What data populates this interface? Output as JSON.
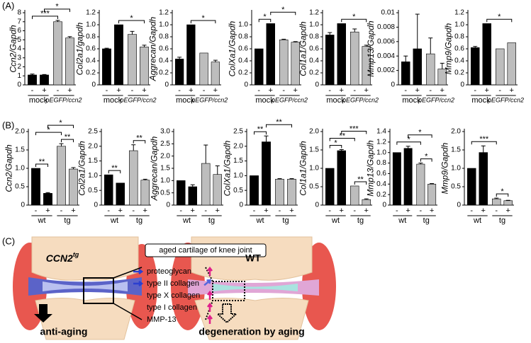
{
  "panel_labels": [
    "(A)",
    "(B)",
    "(C)"
  ],
  "chart_data": [
    {
      "type": "bar",
      "ylabel": "Ccn2/Gapdh",
      "categories": [
        "-",
        "+",
        "-",
        "+"
      ],
      "groups": [
        "mock",
        "pEGFP/ccn2"
      ],
      "colors": [
        "#000000",
        "#000000",
        "#bdbdbd",
        "#bdbdbd"
      ],
      "values": [
        1.1,
        1.1,
        7.0,
        5.2
      ],
      "errors": [
        0.1,
        0.05,
        0.15,
        0.15
      ],
      "ylim": [
        0,
        8
      ],
      "yticks": [
        0,
        1,
        2,
        3,
        4,
        5,
        6,
        7,
        8
      ],
      "brackets": [
        {
          "bars": [
            0,
            2
          ],
          "label": "***"
        },
        {
          "bars": [
            1,
            3
          ],
          "label": "*"
        }
      ]
    },
    {
      "type": "bar",
      "ylabel": "Col2a1/gapdh",
      "categories": [
        "-",
        "+",
        "-",
        "+"
      ],
      "groups": [
        "mock",
        "pEGFP/ccn2"
      ],
      "colors": [
        "#000000",
        "#000000",
        "#bdbdbd",
        "#bdbdbd"
      ],
      "values": [
        0.6,
        1.0,
        0.84,
        0.63
      ],
      "errors": [
        0.01,
        0.0,
        0.05,
        0.03
      ],
      "ylim": [
        0,
        1.2
      ],
      "yticks": [
        0,
        0.2,
        0.4,
        0.6,
        0.8,
        {
          "value": 1,
          "label": "1.0"
        },
        1.2
      ],
      "brackets": [
        {
          "bars": [
            1,
            3
          ],
          "label": "*"
        }
      ]
    },
    {
      "type": "bar",
      "ylabel": "Aggrecan/Gapdh",
      "categories": [
        "-",
        "+",
        "-",
        "+"
      ],
      "groups": [
        "mock",
        "pEGFP/ccn2"
      ],
      "colors": [
        "#000000",
        "#000000",
        "#bdbdbd",
        "#bdbdbd"
      ],
      "values": [
        0.43,
        1.0,
        0.53,
        0.38
      ],
      "errors": [
        0.03,
        0.0,
        0.0,
        0.03
      ],
      "ylim": [
        0,
        1.2
      ],
      "yticks": [
        0,
        0.2,
        0.4,
        0.6,
        0.8,
        {
          "value": 1,
          "label": "1.0"
        },
        1.2
      ],
      "brackets": [
        {
          "bars": [
            1,
            3
          ],
          "label": "*"
        }
      ]
    },
    {
      "type": "bar",
      "ylabel": "ColXa1/Gapdh",
      "categories": [
        "-",
        "+",
        "-",
        "+"
      ],
      "groups": [
        "mock",
        "pEGFP/ccn2"
      ],
      "colors": [
        "#000000",
        "#000000",
        "#bdbdbd",
        "#bdbdbd"
      ],
      "values": [
        0.6,
        1.02,
        0.75,
        0.71
      ],
      "errors": [
        0.0,
        0.0,
        0.01,
        0.01
      ],
      "ylim": [
        0,
        1.2
      ],
      "yticks": [
        0,
        0.2,
        0.4,
        0.6,
        0.8,
        {
          "value": 1,
          "label": "1.0"
        }
      ],
      "brackets": [
        {
          "bars": [
            0,
            1
          ],
          "label": "*"
        },
        {
          "bars": [
            1,
            3
          ],
          "label": "*"
        }
      ]
    },
    {
      "type": "bar",
      "ylabel": "Col1a1/Gapdh",
      "categories": [
        "-",
        "+",
        "-",
        "+"
      ],
      "groups": [
        "mock",
        "pEGFP/ccn2"
      ],
      "colors": [
        "#000000",
        "#000000",
        "#bdbdbd",
        "#bdbdbd"
      ],
      "values": [
        0.83,
        1.02,
        0.88,
        0.64
      ],
      "errors": [
        0.04,
        0.0,
        0.05,
        0.02
      ],
      "ylim": [
        0,
        1.2
      ],
      "yticks": [
        0,
        0.2,
        0.4,
        0.6,
        0.8,
        {
          "value": 1,
          "label": "1.0"
        },
        1.2
      ],
      "brackets": [
        {
          "bars": [
            1,
            3
          ],
          "label": "*"
        }
      ]
    },
    {
      "type": "bar",
      "ylabel": "Mmp13/Gapdh",
      "categories": [
        "-",
        "+",
        "-",
        "+"
      ],
      "groups": [
        "mock",
        "pEGFP/ccn2"
      ],
      "colors": [
        "#000000",
        "#000000",
        "#bdbdbd",
        "#bdbdbd"
      ],
      "values": [
        0.0032,
        0.005,
        0.0043,
        0.0022
      ],
      "errors": [
        0.0008,
        0.0048,
        0.0022,
        0.0008
      ],
      "ylim": [
        0,
        0.01
      ],
      "yticks": [
        0,
        0.002,
        0.004,
        0.006,
        0.008,
        0.01
      ],
      "brackets": []
    },
    {
      "type": "bar",
      "ylabel": "Mmp9/Gapdh",
      "categories": [
        "-",
        "+",
        "-",
        "+"
      ],
      "groups": [
        "mock",
        "pEGFP/ccn2"
      ],
      "colors": [
        "#000000",
        "#000000",
        "#bdbdbd",
        "#bdbdbd"
      ],
      "values": [
        0.62,
        1.02,
        0.6,
        0.7
      ],
      "errors": [
        0.02,
        0.0,
        0.0,
        0.0
      ],
      "ylim": [
        0,
        1.2
      ],
      "yticks": [
        0,
        0.2,
        0.4,
        0.6,
        0.8,
        {
          "value": 1,
          "label": "1.0"
        },
        1.2
      ],
      "brackets": [
        {
          "bars": [
            1,
            3
          ],
          "label": "*"
        }
      ]
    },
    {
      "type": "bar",
      "ylabel": "Ccn2/Gapdh",
      "categories": [
        "-",
        "+",
        "-",
        "+"
      ],
      "groups": [
        "wt",
        "tg"
      ],
      "colors": [
        "#000000",
        "#000000",
        "#bdbdbd",
        "#bdbdbd"
      ],
      "values": [
        1.0,
        0.32,
        1.6,
        0.98
      ],
      "errors": [
        0.0,
        0.02,
        0.07,
        0.04
      ],
      "ylim": [
        0,
        2
      ],
      "yticks": [
        0,
        0.5,
        {
          "value": 1,
          "label": "1.0"
        },
        1.5,
        {
          "value": 2,
          "label": "2.0"
        }
      ],
      "brackets": [
        {
          "bars": [
            0,
            1
          ],
          "label": "**"
        },
        {
          "bars": [
            2,
            3
          ],
          "label": "**"
        },
        {
          "bars": [
            0,
            2
          ],
          "label": "*"
        },
        {
          "bars": [
            1,
            3
          ],
          "label": "*"
        }
      ]
    },
    {
      "type": "bar",
      "ylabel": "Col2a1/Gapdh",
      "categories": [
        "-",
        "+",
        "-",
        "+"
      ],
      "groups": [
        "wt",
        "tg"
      ],
      "colors": [
        "#000000",
        "#000000",
        "#bdbdbd",
        "#bdbdbd"
      ],
      "values": [
        1.03,
        0.75,
        1.85,
        0.85
      ],
      "errors": [
        0.0,
        0.0,
        0.2,
        0.03
      ],
      "ylim": [
        0,
        2.5
      ],
      "yticks": [
        0,
        0.5,
        {
          "value": 1,
          "label": "1.0"
        },
        1.5,
        {
          "value": 2,
          "label": "2.0"
        },
        2.5
      ],
      "brackets": [
        {
          "bars": [
            0,
            1
          ],
          "label": "**"
        },
        {
          "bars": [
            2,
            3
          ],
          "label": "**"
        }
      ]
    },
    {
      "type": "bar",
      "ylabel": "Aggrecan/Gapdh",
      "categories": [
        "-",
        "+",
        "-",
        "+"
      ],
      "groups": [
        "wt",
        "tg"
      ],
      "colors": [
        "#000000",
        "#000000",
        "#bdbdbd",
        "#bdbdbd"
      ],
      "values": [
        1.0,
        0.75,
        1.7,
        1.25
      ],
      "errors": [
        0.0,
        0.08,
        0.75,
        0.35
      ],
      "ylim": [
        0,
        3
      ],
      "yticks": [
        0,
        0.5,
        {
          "value": 1,
          "label": "1.0"
        },
        1.5,
        {
          "value": 2,
          "label": "2.0"
        },
        2.5,
        {
          "value": 3,
          "label": "3.0"
        }
      ],
      "brackets": []
    },
    {
      "type": "bar",
      "ylabel": "ColXa1/Gapdh",
      "categories": [
        "-",
        "+",
        "-",
        "+"
      ],
      "groups": [
        "wt",
        "tg"
      ],
      "colors": [
        "#000000",
        "#000000",
        "#bdbdbd",
        "#bdbdbd"
      ],
      "values": [
        1.0,
        2.15,
        0.88,
        0.88
      ],
      "errors": [
        0.0,
        0.2,
        0.02,
        0.02
      ],
      "ylim": [
        0,
        2.5
      ],
      "yticks": [
        0,
        0.5,
        {
          "value": 1,
          "label": "1.0"
        },
        1.5,
        {
          "value": 2,
          "label": "2.0"
        },
        2.5
      ],
      "brackets": [
        {
          "bars": [
            0,
            1
          ],
          "label": "**"
        },
        {
          "bars": [
            1,
            3
          ],
          "label": "**"
        }
      ]
    },
    {
      "type": "bar",
      "ylabel": "Col1a1/Gapdh",
      "categories": [
        "-",
        "+",
        "-",
        "+"
      ],
      "groups": [
        "wt",
        "tg"
      ],
      "colors": [
        "#000000",
        "#000000",
        "#bdbdbd",
        "#bdbdbd"
      ],
      "values": [
        1.0,
        1.48,
        0.52,
        0.15
      ],
      "errors": [
        0.0,
        0.03,
        0.0,
        0.02
      ],
      "ylim": [
        0,
        2
      ],
      "yticks": [
        0,
        0.5,
        {
          "value": 1,
          "label": "1.0"
        },
        1.5,
        {
          "value": 2,
          "label": "2.0"
        }
      ],
      "brackets": [
        {
          "bars": [
            0,
            1
          ],
          "label": "*"
        },
        {
          "bars": [
            2,
            3
          ],
          "label": "**"
        },
        {
          "bars": [
            0,
            2
          ],
          "label": "**"
        },
        {
          "bars": [
            1,
            3
          ],
          "label": "***"
        }
      ]
    },
    {
      "type": "bar",
      "ylabel": "Mmp13/Gapdh",
      "categories": [
        "-",
        "+",
        "-",
        "+"
      ],
      "groups": [
        "wt",
        "tg"
      ],
      "colors": [
        "#000000",
        "#000000",
        "#bdbdbd",
        "#bdbdbd"
      ],
      "values": [
        1.0,
        1.08,
        0.78,
        0.4
      ],
      "errors": [
        0.0,
        0.04,
        0.02,
        0.01
      ],
      "ylim": [
        0,
        1.4
      ],
      "yticks": [
        0,
        0.2,
        0.4,
        0.6,
        0.8,
        {
          "value": 1,
          "label": "1.0"
        },
        1.2,
        1.4
      ],
      "brackets": [
        {
          "bars": [
            2,
            3
          ],
          "label": "*"
        },
        {
          "bars": [
            0,
            2
          ],
          "label": "*"
        },
        {
          "bars": [
            1,
            3
          ],
          "label": "*"
        }
      ]
    },
    {
      "type": "bar",
      "ylabel": "Mmp9/Gapdh",
      "categories": [
        "-",
        "+",
        "-",
        "+"
      ],
      "groups": [
        "wt",
        "tg"
      ],
      "colors": [
        "#000000",
        "#000000",
        "#bdbdbd",
        "#bdbdbd"
      ],
      "values": [
        1.0,
        1.43,
        0.17,
        0.12
      ],
      "errors": [
        0.0,
        0.18,
        0.02,
        0.01
      ],
      "ylim": [
        0,
        2
      ],
      "yticks": [
        0,
        0.5,
        {
          "value": 1,
          "label": "1.0"
        },
        1.5,
        {
          "value": 2,
          "label": "2.0"
        }
      ],
      "brackets": [
        {
          "bars": [
            2,
            3
          ],
          "label": "*"
        },
        {
          "bars": [
            0,
            2
          ],
          "label": "***"
        }
      ]
    }
  ],
  "diagram": {
    "box_label": "aged cartilage of knee joint",
    "left_title": "CCN2",
    "left_title_sup": "tg",
    "right_title": "WT",
    "items": [
      "proteoglycan",
      "type II collagen",
      "type X collagen",
      "type I collagen",
      "MMP-13"
    ],
    "left_caption": "anti-aging",
    "right_caption": "degeneration by aging"
  }
}
